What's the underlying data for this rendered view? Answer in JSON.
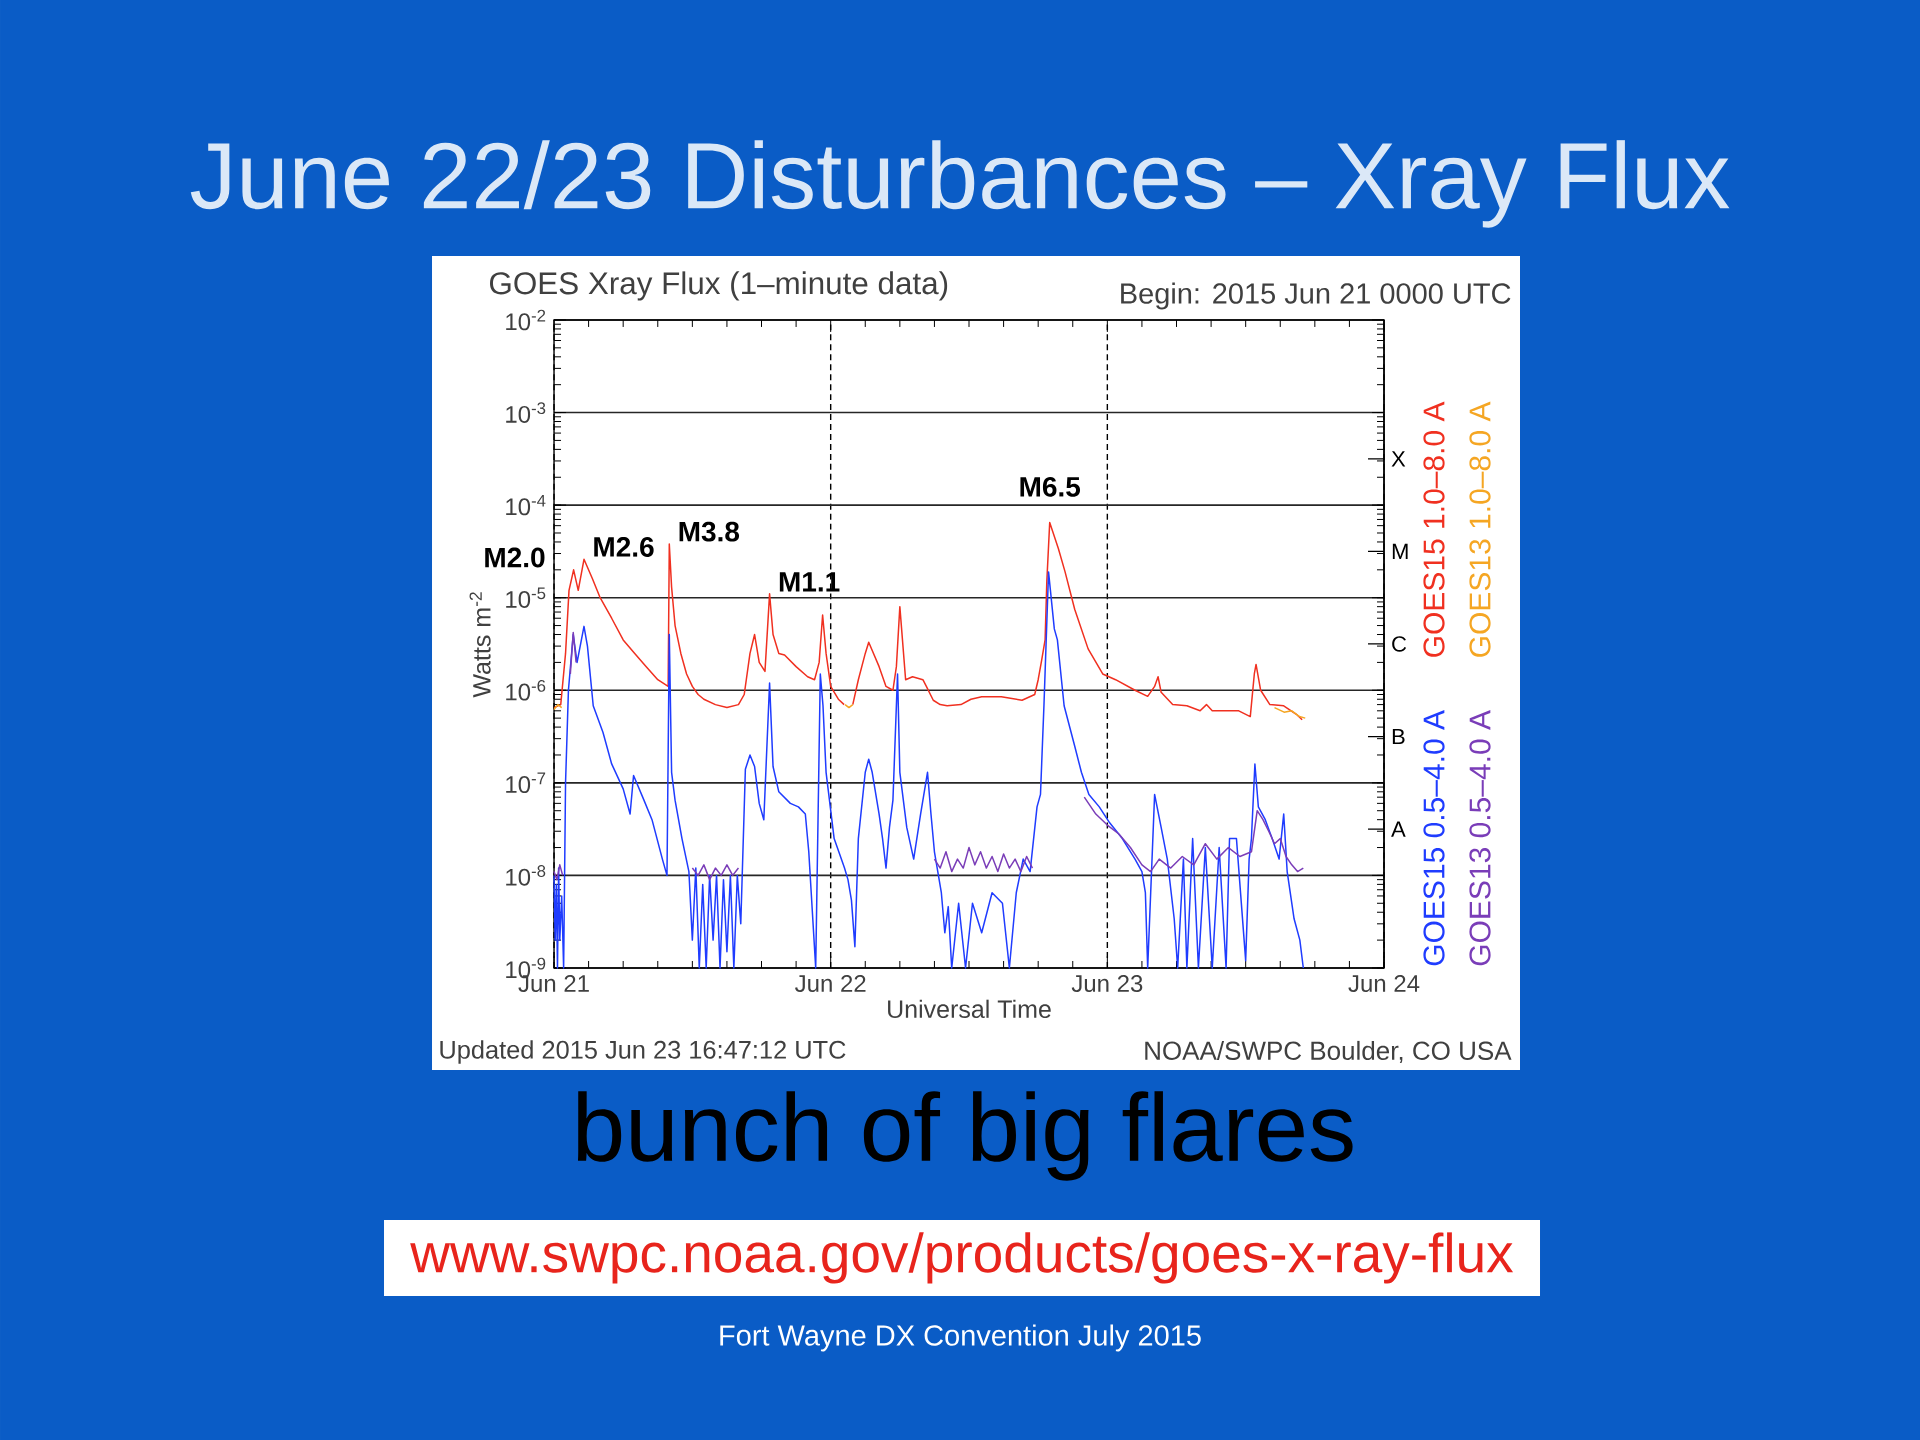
{
  "chart_data": {
    "type": "line",
    "title": "June 22/23 Disturbances – Xray Flux",
    "subtitle": "GOES Xray Flux (1–minute data)",
    "xlabel": "Universal Time",
    "ylabel": "Watts m$^{-2}$",
    "xlim": [
      "2015-06-21",
      "2015-06-24"
    ],
    "xticks": [
      {
        "value": "2015-06-21",
        "label": "Jun 21"
      },
      {
        "value": "2015-06-22",
        "label": "Jun 22"
      },
      {
        "value": "2015-06-23",
        "label": "Jun 23"
      },
      {
        "value": "2015-06-24",
        "label": "Jun 24"
      }
    ],
    "ylim": [
      1e-09,
      0.01
    ],
    "yticks": [
      {
        "value": 1e-09,
        "label": "10$^{-9}$"
      },
      {
        "value": 1e-08,
        "label": "10$^{-8}$"
      },
      {
        "value": 1e-07,
        "label": "10$^{-7}$"
      },
      {
        "value": 1e-06,
        "label": "10$^{-6}$"
      },
      {
        "value": 1e-05,
        "label": "10$^{-5}$"
      },
      {
        "value": 0.0001,
        "label": "10$^{-4}$"
      },
      {
        "value": 0.001,
        "label": "10$^{-3}$"
      },
      {
        "value": 0.01,
        "label": "10$^{-2}$"
      }
    ],
    "y2_categories": [
      null,
      "X",
      "M",
      "C",
      "B",
      "A",
      null
    ],
    "log": "y",
    "grid": true,
    "legend": "right",
    "marker": "none",
    "line_style": "solid",
    "series": [
      {
        "name": "GOES15 1.0–8.0 A",
        "color": "#f03020",
        "x": [
          "2015-06-21T00:00",
          "2015-06-21T00:35",
          "2015-06-21T01:00",
          "2015-06-21T01:18",
          "2015-06-21T01:42",
          "2015-06-21T02:06",
          "2015-06-21T02:36",
          "2015-06-21T03:20",
          "2015-06-21T04:00",
          "2015-06-21T05:00",
          "2015-06-21T06:00",
          "2015-06-21T07:00",
          "2015-06-21T08:00",
          "2015-06-21T09:00",
          "2015-06-21T09:54",
          "2015-06-21T10:00",
          "2015-06-21T10:12",
          "2015-06-21T10:30",
          "2015-06-21T11:00",
          "2015-06-21T11:30",
          "2015-06-21T12:00",
          "2015-06-21T12:30",
          "2015-06-21T13:00",
          "2015-06-21T14:00",
          "2015-06-21T15:00",
          "2015-06-21T16:00",
          "2015-06-21T16:30",
          "2015-06-21T17:00",
          "2015-06-21T17:24",
          "2015-06-21T17:48",
          "2015-06-21T18:18",
          "2015-06-21T18:42",
          "2015-06-21T19:00",
          "2015-06-21T19:30",
          "2015-06-21T20:00",
          "2015-06-21T21:00",
          "2015-06-21T22:00",
          "2015-06-21T22:36",
          "2015-06-21T23:00",
          "2015-06-21T23:18",
          "2015-06-21T23:36",
          "2015-06-22T00:00",
          "2015-06-22T00:40",
          "2015-06-22T01:10",
          "2015-06-22T01:20",
          "2015-06-22T01:55",
          "2015-06-22T02:24",
          "2015-06-22T03:00",
          "2015-06-22T03:18",
          "2015-06-22T04:12",
          "2015-06-22T04:48",
          "2015-06-22T05:24",
          "2015-06-22T05:42",
          "2015-06-22T06:00",
          "2015-06-22T06:30",
          "2015-06-22T07:06",
          "2015-06-22T08:00",
          "2015-06-22T08:18",
          "2015-06-22T08:54",
          "2015-06-22T09:30",
          "2015-06-22T10:06",
          "2015-06-22T11:18",
          "2015-06-22T12:10",
          "2015-06-22T13:06",
          "2015-06-22T14:48",
          "2015-06-22T16:36",
          "2015-06-22T17:42",
          "2015-06-22T18:00",
          "2015-06-22T18:18",
          "2015-06-22T18:36",
          "2015-06-22T18:45",
          "2015-06-22T19:00",
          "2015-06-22T19:45",
          "2015-06-22T20:20",
          "2015-06-22T21:10",
          "2015-06-22T22:20",
          "2015-06-22T23:36",
          "2015-06-23T00:43",
          "2015-06-23T02:24",
          "2015-06-23T03:30",
          "2015-06-23T04:06",
          "2015-06-23T04:24",
          "2015-06-23T04:40",
          "2015-06-23T05:40",
          "2015-06-23T06:54",
          "2015-06-23T08:03",
          "2015-06-23T08:36",
          "2015-06-23T09:06",
          "2015-06-23T10:12",
          "2015-06-23T11:24",
          "2015-06-23T12:24",
          "2015-06-23T12:45",
          "2015-06-23T12:54",
          "2015-06-23T13:18",
          "2015-06-23T14:06",
          "2015-06-23T15:18",
          "2015-06-23T16:24",
          "2015-06-23T16:54"
        ],
        "values": [
          6.5e-07,
          7e-07,
          2.5e-06,
          1.2e-05,
          2e-05,
          1.2e-05,
          2.6e-05,
          1.6e-05,
          1e-05,
          6e-06,
          3.5e-06,
          2.5e-06,
          1.8e-06,
          1.3e-06,
          1.1e-06,
          3.8e-05,
          1.3e-05,
          5e-06,
          2.5e-06,
          1.5e-06,
          1.1e-06,
          9e-07,
          8e-07,
          7e-07,
          6.5e-07,
          7e-07,
          9e-07,
          2.5e-06,
          4e-06,
          2e-06,
          1.6e-06,
          1.1e-05,
          4e-06,
          2.5e-06,
          2.4e-06,
          1.8e-06,
          1.4e-06,
          1.3e-06,
          2e-06,
          6.5e-06,
          2.5e-06,
          1.1e-06,
          8e-07,
          7e-07,
          null,
          7e-07,
          1.3e-06,
          2.5e-06,
          3.3e-06,
          1.8e-06,
          1.1e-06,
          1e-06,
          1.8e-06,
          8e-06,
          1.3e-06,
          1.4e-06,
          1.3e-06,
          1.1e-06,
          7.8e-07,
          7e-07,
          6.8e-07,
          7e-07,
          8e-07,
          8.5e-07,
          8.5e-07,
          7.8e-07,
          9e-07,
          1.3e-06,
          2.1e-06,
          3.5e-06,
          1.5e-05,
          6.5e-05,
          3.4e-05,
          1.9e-05,
          7.5e-06,
          2.8e-06,
          1.5e-06,
          1.3e-06,
          1e-06,
          8.6e-07,
          1.1e-06,
          1.4e-06,
          9.5e-07,
          7e-07,
          6.8e-07,
          6e-07,
          7e-07,
          6e-07,
          6e-07,
          6e-07,
          5.2e-07,
          1.5e-06,
          1.9e-06,
          1e-06,
          7e-07,
          6.8e-07,
          5.5e-07,
          4.8e-07
        ]
      },
      {
        "name": "GOES13 1.0–8.0 A",
        "color": "#f5a623",
        "x": [
          "2015-06-21T00:00",
          "2015-06-21T00:20",
          "2015-06-21T00:40",
          "2015-06-21T00:50",
          "2015-06-22T01:15",
          "2015-06-22T01:35",
          "2015-06-22T01:55",
          "2015-06-22T02:05",
          "2015-06-23T14:30",
          "2015-06-23T15:20",
          "2015-06-23T16:00",
          "2015-06-23T16:40",
          "2015-06-23T17:10"
        ],
        "values": [
          6.2e-07,
          7e-07,
          6.5e-07,
          null,
          7e-07,
          6.5e-07,
          7e-07,
          null,
          6.5e-07,
          5.8e-07,
          6e-07,
          5.2e-07,
          5e-07
        ]
      },
      {
        "name": "GOES15 0.5–4.0 A",
        "color": "#1f3cff",
        "x": [
          "2015-06-21T00:00",
          "2015-06-21T00:06",
          "2015-06-21T00:12",
          "2015-06-21T00:18",
          "2015-06-21T00:24",
          "2015-06-21T00:30",
          "2015-06-21T00:40",
          "2015-06-21T00:50",
          "2015-06-21T01:00",
          "2015-06-21T01:15",
          "2015-06-21T01:40",
          "2015-06-21T02:00",
          "2015-06-21T02:36",
          "2015-06-21T02:54",
          "2015-06-21T03:24",
          "2015-06-21T04:15",
          "2015-06-21T05:00",
          "2015-06-21T06:00",
          "2015-06-21T06:36",
          "2015-06-21T06:54",
          "2015-06-21T07:48",
          "2015-06-21T08:30",
          "2015-06-21T09:24",
          "2015-06-21T09:48",
          "2015-06-21T10:00",
          "2015-06-21T10:12",
          "2015-06-21T10:30",
          "2015-06-21T11:06",
          "2015-06-21T11:42",
          "2015-06-21T12:00",
          "2015-06-21T12:18",
          "2015-06-21T12:36",
          "2015-06-21T12:54",
          "2015-06-21T13:12",
          "2015-06-21T13:30",
          "2015-06-21T13:48",
          "2015-06-21T14:06",
          "2015-06-21T14:24",
          "2015-06-21T14:42",
          "2015-06-21T15:00",
          "2015-06-21T15:18",
          "2015-06-21T15:36",
          "2015-06-21T15:54",
          "2015-06-21T16:12",
          "2015-06-21T16:36",
          "2015-06-21T17:00",
          "2015-06-21T17:24",
          "2015-06-21T17:48",
          "2015-06-21T18:12",
          "2015-06-21T18:42",
          "2015-06-21T19:00",
          "2015-06-21T19:30",
          "2015-06-21T20:30",
          "2015-06-21T21:12",
          "2015-06-21T21:48",
          "2015-06-21T22:06",
          "2015-06-21T22:42",
          "2015-06-21T23:06",
          "2015-06-21T23:20",
          "2015-06-21T23:36",
          "2015-06-22T00:18",
          "2015-06-22T01:12",
          "2015-06-22T01:30",
          "2015-06-22T01:48",
          "2015-06-22T02:06",
          "2015-06-22T02:24",
          "2015-06-22T03:00",
          "2015-06-22T03:18",
          "2015-06-22T03:36",
          "2015-06-22T04:12",
          "2015-06-22T04:30",
          "2015-06-22T04:48",
          "2015-06-22T05:06",
          "2015-06-22T05:24",
          "2015-06-22T05:48",
          "2015-06-22T06:00",
          "2015-06-22T06:36",
          "2015-06-22T07:12",
          "2015-06-22T07:48",
          "2015-06-22T08:24",
          "2015-06-22T08:42",
          "2015-06-22T09:00",
          "2015-06-22T09:36",
          "2015-06-22T09:54",
          "2015-06-22T10:12",
          "2015-06-22T10:30",
          "2015-06-22T11:06",
          "2015-06-22T11:42",
          "2015-06-22T12:18",
          "2015-06-22T13:06",
          "2015-06-22T14:00",
          "2015-06-22T14:54",
          "2015-06-22T15:30",
          "2015-06-22T16:06",
          "2015-06-22T16:42",
          "2015-06-22T17:18",
          "2015-06-22T17:54",
          "2015-06-22T18:12",
          "2015-06-22T18:30",
          "2015-06-22T18:54",
          "2015-06-22T19:24",
          "2015-06-22T19:40",
          "2015-06-22T20:15",
          "2015-06-22T21:10",
          "2015-06-22T21:45",
          "2015-06-22T22:24",
          "2015-06-22T23:18",
          "2015-06-23T00:12",
          "2015-06-23T01:18",
          "2015-06-23T02:24",
          "2015-06-23T03:00",
          "2015-06-23T03:18",
          "2015-06-23T03:30",
          "2015-06-23T04:06",
          "2015-06-23T04:40",
          "2015-06-23T05:12",
          "2015-06-23T05:48",
          "2015-06-23T06:06",
          "2015-06-23T06:36",
          "2015-06-23T06:54",
          "2015-06-23T07:24",
          "2015-06-23T07:54",
          "2015-06-23T08:30",
          "2015-06-23T09:06",
          "2015-06-23T09:42",
          "2015-06-23T10:18",
          "2015-06-23T10:36",
          "2015-06-23T11:12",
          "2015-06-23T12:00",
          "2015-06-23T12:18",
          "2015-06-23T12:30",
          "2015-06-23T12:48",
          "2015-06-23T13:06",
          "2015-06-23T13:42",
          "2015-06-23T14:18",
          "2015-06-23T14:54",
          "2015-06-23T15:18",
          "2015-06-23T15:36",
          "2015-06-23T16:12",
          "2015-06-23T16:42",
          "2015-06-23T17:00"
        ],
        "values": [
          1e-08,
          2e-09,
          8e-09,
          1e-09,
          1.2e-08,
          2e-09,
          6e-09,
          1e-09,
          1e-07,
          1e-06,
          4e-06,
          2e-06,
          4.9e-06,
          3e-06,
          6.8e-07,
          3.5e-07,
          1.6e-07,
          8.6e-08,
          4.6e-08,
          1.2e-07,
          6.5e-08,
          4e-08,
          1.5e-08,
          1e-08,
          4e-06,
          1.3e-07,
          6.5e-08,
          2.5e-08,
          1.1e-08,
          2e-09,
          1.2e-08,
          1e-09,
          8e-09,
          1e-09,
          1e-08,
          2e-09,
          1e-08,
          1e-09,
          9e-09,
          1.5e-09,
          1e-08,
          1e-09,
          1e-08,
          3e-09,
          1.4e-07,
          2e-07,
          1.5e-07,
          6e-08,
          4e-08,
          1.2e-06,
          1.5e-07,
          8e-08,
          6e-08,
          5.5e-08,
          4.6e-08,
          1.8e-08,
          1e-09,
          1.5e-06,
          6.8e-07,
          1.3e-07,
          2.5e-08,
          1.2e-08,
          9e-09,
          5.4e-09,
          1.7e-09,
          2.5e-08,
          1.3e-07,
          1.8e-07,
          1.3e-07,
          4.6e-08,
          2.5e-08,
          1.2e-08,
          3.3e-08,
          6.5e-08,
          1.5e-06,
          1.3e-07,
          3.3e-08,
          1.5e-08,
          4.6e-08,
          1.3e-07,
          4.6e-08,
          1.8e-08,
          6.5e-09,
          2.4e-09,
          4.6e-09,
          1e-09,
          5e-09,
          1e-09,
          5e-09,
          2.4e-09,
          6.5e-09,
          5e-09,
          1e-09,
          6.5e-09,
          1.5e-08,
          1.1e-08,
          5.5e-08,
          7.5e-08,
          6.8e-07,
          1.9e-05,
          4.6e-06,
          3.5e-06,
          6.8e-07,
          2.5e-07,
          1.3e-07,
          7.5e-08,
          5.5e-08,
          3.7e-08,
          2.5e-08,
          1.5e-08,
          1.1e-08,
          6.5e-09,
          1e-09,
          7.5e-08,
          3.3e-08,
          1.5e-08,
          3.4e-09,
          1e-09,
          1.5e-08,
          1e-09,
          2.5e-08,
          1e-09,
          2e-08,
          1e-09,
          2e-08,
          1e-09,
          2.5e-08,
          2.5e-08,
          1.2e-09,
          1.5e-08,
          2.5e-08,
          1.6e-07,
          5.5e-08,
          4e-08,
          2.5e-08,
          1.5e-08,
          4.6e-08,
          1.1e-08,
          3.4e-09,
          2e-09,
          1e-09
        ]
      },
      {
        "name": "GOES13 0.5–4.0 A",
        "color": "#7a3db8",
        "x": [
          "2015-06-21T00:00",
          "2015-06-21T00:15",
          "2015-06-21T00:30",
          "2015-06-21T00:45",
          "2015-06-21T00:50",
          "2015-06-21T01:25",
          "2015-06-21T01:40",
          "2015-06-21T01:55",
          "2015-06-21T02:00",
          "2015-06-21T12:00",
          "2015-06-21T12:30",
          "2015-06-21T13:00",
          "2015-06-21T13:30",
          "2015-06-21T14:00",
          "2015-06-21T14:30",
          "2015-06-21T15:00",
          "2015-06-21T15:30",
          "2015-06-21T16:00",
          "2015-06-21T16:20",
          "2015-06-22T09:00",
          "2015-06-22T09:30",
          "2015-06-22T10:00",
          "2015-06-22T10:30",
          "2015-06-22T11:00",
          "2015-06-22T11:30",
          "2015-06-22T12:00",
          "2015-06-22T12:30",
          "2015-06-22T13:00",
          "2015-06-22T13:30",
          "2015-06-22T14:00",
          "2015-06-22T14:30",
          "2015-06-22T15:00",
          "2015-06-22T15:30",
          "2015-06-22T16:00",
          "2015-06-22T16:30",
          "2015-06-22T17:00",
          "2015-06-22T17:30",
          "2015-06-22T17:45",
          "2015-06-22T22:00",
          "2015-06-22T23:00",
          "2015-06-23T00:00",
          "2015-06-23T01:00",
          "2015-06-23T02:00",
          "2015-06-23T03:00",
          "2015-06-23T03:45",
          "2015-06-23T04:30",
          "2015-06-23T05:30",
          "2015-06-23T06:30",
          "2015-06-23T07:30",
          "2015-06-23T08:30",
          "2015-06-23T09:30",
          "2015-06-23T10:30",
          "2015-06-23T11:30",
          "2015-06-23T12:30",
          "2015-06-23T13:00",
          "2015-06-23T13:30",
          "2015-06-23T14:00",
          "2015-06-23T14:30",
          "2015-06-23T15:00",
          "2015-06-23T15:30",
          "2015-06-23T16:00",
          "2015-06-23T16:30",
          "2015-06-23T17:00"
        ],
        "values": [
          1.1e-08,
          9e-09,
          1.3e-08,
          1e-08,
          null,
          1.5e-06,
          4.2e-06,
          2e-06,
          null,
          1.2e-08,
          1e-08,
          1.3e-08,
          9e-09,
          1.2e-08,
          1e-08,
          1.3e-08,
          1e-08,
          1.2e-08,
          null,
          1.5e-08,
          1.2e-08,
          1.8e-08,
          1.1e-08,
          1.5e-08,
          1.2e-08,
          2e-08,
          1.3e-08,
          1.8e-08,
          1.2e-08,
          1.6e-08,
          1.1e-08,
          1.7e-08,
          1.2e-08,
          1.5e-08,
          1.1e-08,
          1.6e-08,
          1.2e-08,
          null,
          7e-08,
          4.6e-08,
          3.5e-08,
          2.8e-08,
          2e-08,
          1.3e-08,
          1.1e-08,
          1.5e-08,
          1.2e-08,
          1.6e-08,
          1.3e-08,
          2.2e-08,
          1.5e-08,
          2e-08,
          1.6e-08,
          1.8e-08,
          5e-08,
          4e-08,
          3e-08,
          2.2e-08,
          2.5e-08,
          1.6e-08,
          1.3e-08,
          1.1e-08,
          1.2e-08
        ]
      }
    ],
    "annotations": [
      "Begin: 2015 Jun 21 0000 UTC",
      "Updated 2015 Jun 23 16:47:12 UTC",
      "NOAA/SWPC Boulder, CO USA",
      "bunch of big flares",
      "www.swpc.noaa.gov/products/goes-x-ray-flux",
      "Fort Wayne DX Convention July 2015",
      {
        "text": "M2.0",
        "x": "2015-06-21T01:42",
        "y": 2e-05
      },
      {
        "text": "M2.6",
        "x": "2015-06-21T02:36",
        "y": 2.6e-05
      },
      {
        "text": "M3.8",
        "x": "2015-06-21T10:00",
        "y": 3.8e-05
      },
      {
        "text": "M1.1",
        "x": "2015-06-21T18:42",
        "y": 1.1e-05
      },
      {
        "text": "M6.5",
        "x": "2015-06-22T19:00",
        "y": 6.5e-05
      }
    ]
  }
}
